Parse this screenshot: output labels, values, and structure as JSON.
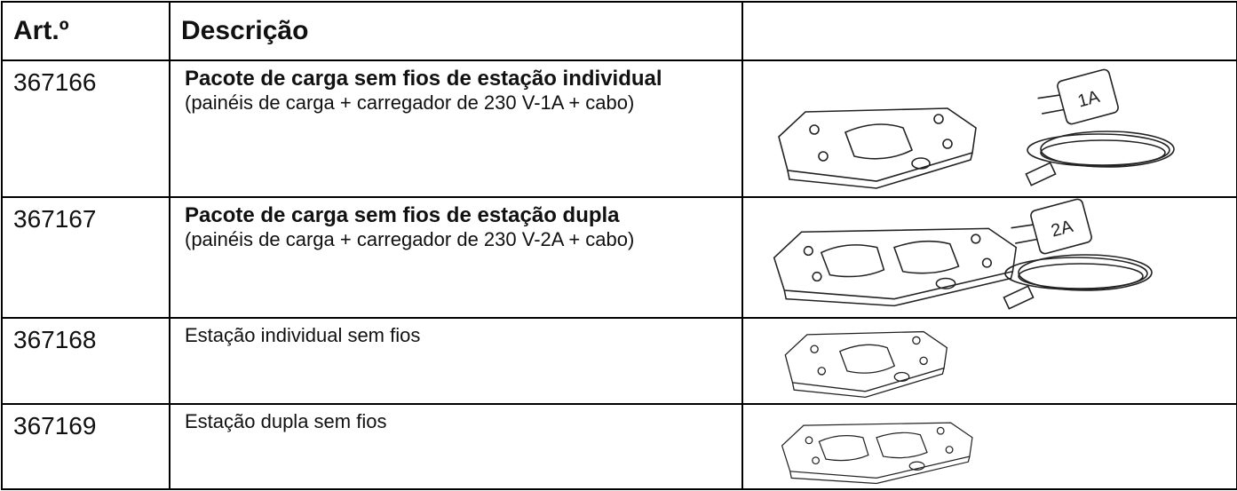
{
  "table": {
    "header": [
      "Art.º",
      "Descrição"
    ],
    "rows": [
      {
        "article": "367166",
        "title": "Pacote de carga sem fios de estação individual",
        "details": "(painéis de carga + carregador de 230 V-1A + cabo)",
        "charger_label": "1A"
      },
      {
        "article": "367167",
        "title": "Pacote de carga sem fios de estação dupla",
        "details": "(painéis de carga + carregador de 230 V-2A + cabo)",
        "charger_label": "2A"
      },
      {
        "article": "367168",
        "description": "Estação individual sem fios"
      },
      {
        "article": "367169",
        "description": "Estação dupla sem fios"
      }
    ]
  }
}
